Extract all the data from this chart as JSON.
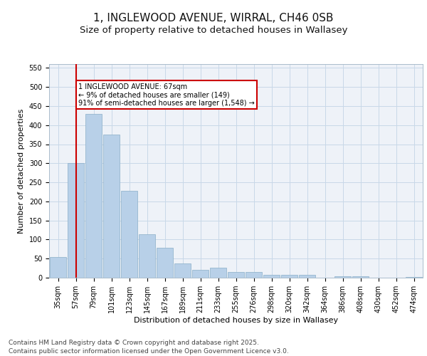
{
  "title1": "1, INGLEWOOD AVENUE, WIRRAL, CH46 0SB",
  "title2": "Size of property relative to detached houses in Wallasey",
  "xlabel": "Distribution of detached houses by size in Wallasey",
  "ylabel": "Number of detached properties",
  "categories": [
    "35sqm",
    "57sqm",
    "79sqm",
    "101sqm",
    "123sqm",
    "145sqm",
    "167sqm",
    "189sqm",
    "211sqm",
    "233sqm",
    "255sqm",
    "276sqm",
    "298sqm",
    "320sqm",
    "342sqm",
    "364sqm",
    "386sqm",
    "408sqm",
    "430sqm",
    "452sqm",
    "474sqm"
  ],
  "values": [
    55,
    300,
    430,
    375,
    227,
    113,
    78,
    38,
    20,
    26,
    15,
    15,
    8,
    8,
    8,
    0,
    4,
    3,
    0,
    0,
    1
  ],
  "bar_color": "#b8d0e8",
  "bar_edge_color": "#8aaec8",
  "grid_color": "#c8d8e8",
  "background_color": "#eef2f8",
  "fig_background": "#ffffff",
  "vline_x_index": 1,
  "vline_color": "#cc0000",
  "annotation_text": "1 INGLEWOOD AVENUE: 67sqm\n← 9% of detached houses are smaller (149)\n91% of semi-detached houses are larger (1,548) →",
  "annotation_box_facecolor": "#ffffff",
  "annotation_box_edgecolor": "#cc0000",
  "ylim": [
    0,
    560
  ],
  "yticks": [
    0,
    50,
    100,
    150,
    200,
    250,
    300,
    350,
    400,
    450,
    500,
    550
  ],
  "footer_text": "Contains HM Land Registry data © Crown copyright and database right 2025.\nContains public sector information licensed under the Open Government Licence v3.0.",
  "title_fontsize": 11,
  "subtitle_fontsize": 9.5,
  "axis_label_fontsize": 8,
  "tick_fontsize": 7,
  "annotation_fontsize": 7,
  "footer_fontsize": 6.5
}
